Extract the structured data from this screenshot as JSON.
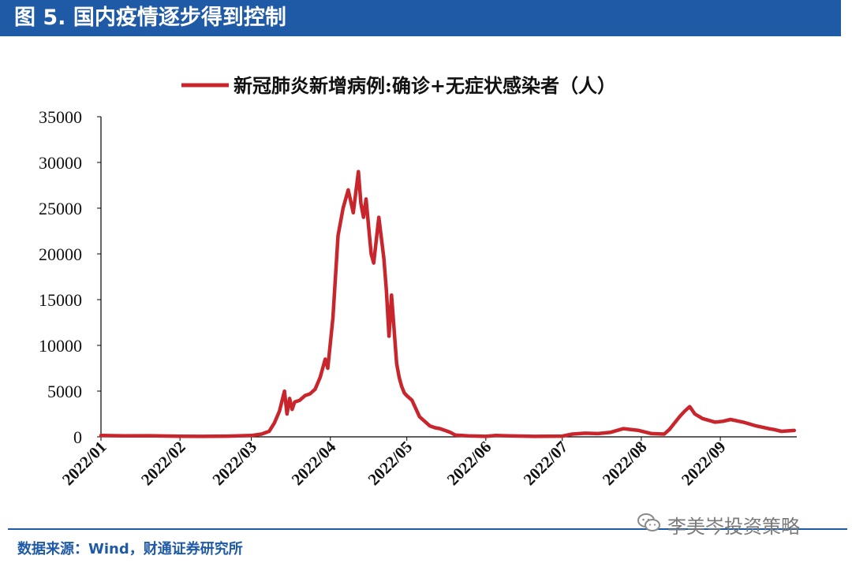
{
  "header": {
    "title": "图 5. 国内疫情逐步得到控制"
  },
  "source": "数据来源：Wind，财通证券研究所",
  "watermark": {
    "text": "李美岑投资策略",
    "icon": "wechat-icon"
  },
  "colors": {
    "header_bg": "#1f5aa6",
    "series_line": "#c8262c",
    "source_text": "#1f5aa6"
  },
  "chart_data": {
    "type": "line",
    "title": "",
    "xlabel": "",
    "ylabel": "",
    "ylim": [
      0,
      35000
    ],
    "yticks": [
      "0",
      "5000",
      "10000",
      "15000",
      "20000",
      "25000",
      "30000",
      "35000"
    ],
    "xticks": [
      "2022/01",
      "2022/02",
      "2022/03",
      "2022/04",
      "2022/05",
      "2022/06",
      "2022/07",
      "2022/08",
      "2022/09"
    ],
    "grid": false,
    "legend": "top-center",
    "series": [
      {
        "name": "新冠肺炎新增病例:确诊+无症状感染者（人）",
        "x": [
          "2022-01-01",
          "2022-01-10",
          "2022-01-20",
          "2022-02-01",
          "2022-02-10",
          "2022-02-20",
          "2022-03-01",
          "2022-03-05",
          "2022-03-08",
          "2022-03-10",
          "2022-03-12",
          "2022-03-14",
          "2022-03-15",
          "2022-03-16",
          "2022-03-17",
          "2022-03-18",
          "2022-03-20",
          "2022-03-22",
          "2022-03-24",
          "2022-03-26",
          "2022-03-28",
          "2022-03-30",
          "2022-03-31",
          "2022-04-02",
          "2022-04-04",
          "2022-04-06",
          "2022-04-08",
          "2022-04-10",
          "2022-04-12",
          "2022-04-13",
          "2022-04-14",
          "2022-04-15",
          "2022-04-17",
          "2022-04-18",
          "2022-04-20",
          "2022-04-22",
          "2022-04-23",
          "2022-04-24",
          "2022-04-25",
          "2022-04-27",
          "2022-04-28",
          "2022-04-29",
          "2022-04-30",
          "2022-05-01",
          "2022-05-03",
          "2022-05-06",
          "2022-05-10",
          "2022-05-12",
          "2022-05-14",
          "2022-05-16",
          "2022-05-18",
          "2022-05-20",
          "2022-05-25",
          "2022-06-01",
          "2022-06-05",
          "2022-06-10",
          "2022-06-20",
          "2022-07-01",
          "2022-07-05",
          "2022-07-10",
          "2022-07-15",
          "2022-07-20",
          "2022-07-25",
          "2022-07-31",
          "2022-08-05",
          "2022-08-10",
          "2022-08-12",
          "2022-08-14",
          "2022-08-16",
          "2022-08-18",
          "2022-08-20",
          "2022-08-22",
          "2022-08-25",
          "2022-08-30",
          "2022-09-02",
          "2022-09-05",
          "2022-09-10",
          "2022-09-15",
          "2022-09-20",
          "2022-09-22",
          "2022-09-25",
          "2022-09-30"
        ],
        "values": [
          150,
          100,
          120,
          60,
          50,
          80,
          150,
          300,
          600,
          1500,
          2800,
          5000,
          2500,
          4200,
          3000,
          3800,
          4000,
          4500,
          4700,
          5200,
          6500,
          8500,
          7500,
          13000,
          22000,
          25000,
          27000,
          24500,
          29000,
          25500,
          24000,
          26000,
          20000,
          19000,
          24000,
          19500,
          16000,
          11000,
          15500,
          8000,
          6500,
          5500,
          4800,
          4500,
          4000,
          2200,
          1200,
          1000,
          900,
          700,
          500,
          200,
          100,
          50,
          150,
          100,
          50,
          80,
          300,
          400,
          350,
          500,
          900,
          700,
          350,
          300,
          800,
          1500,
          2200,
          2800,
          3300,
          2500,
          2000,
          1600,
          1700,
          1900,
          1600,
          1200,
          900,
          800,
          600,
          700
        ]
      }
    ]
  }
}
